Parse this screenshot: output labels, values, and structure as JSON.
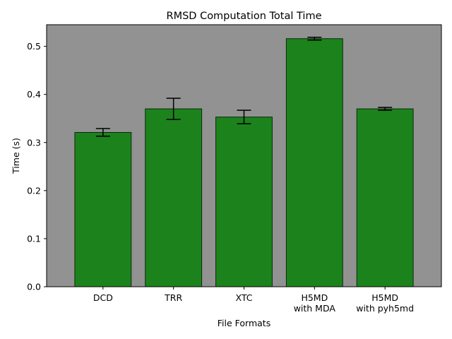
{
  "chart_data": {
    "type": "bar",
    "title": "RMSD Computation Total Time",
    "xlabel": "File Formats",
    "ylabel": "Time (s)",
    "categories": [
      [
        "DCD"
      ],
      [
        "TRR"
      ],
      [
        "XTC"
      ],
      [
        "H5MD",
        "with MDA"
      ],
      [
        "H5MD",
        "with pyh5md"
      ]
    ],
    "values": [
      0.321,
      0.37,
      0.353,
      0.516,
      0.37
    ],
    "errors": [
      0.008,
      0.022,
      0.014,
      0.003,
      0.003
    ],
    "ylim": [
      0,
      0.545
    ],
    "yticks": [
      0.0,
      0.1,
      0.2,
      0.3,
      0.4,
      0.5
    ],
    "ytick_labels": [
      "0.0",
      "0.1",
      "0.2",
      "0.3",
      "0.4",
      "0.5"
    ],
    "grid": false,
    "colors": {
      "bar_fill": "#1c831c",
      "bar_edge": "#0a2a0a",
      "plot_background": "#929292",
      "error_bar": "#000000"
    }
  }
}
